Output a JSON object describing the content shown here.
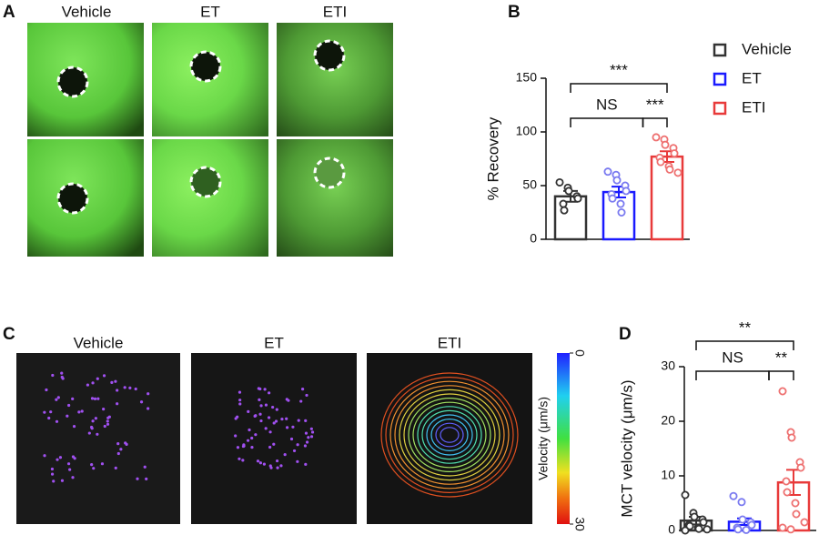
{
  "figure": {
    "panel_letters": [
      "A",
      "B",
      "C",
      "D"
    ],
    "panel_a_labels": [
      "Vehicle",
      "ET",
      "ETI"
    ],
    "panel_c_labels": [
      "Vehicle",
      "ET",
      "ETI"
    ],
    "colorbar": {
      "label": "Velocity (μm/s)",
      "ticks": [
        0,
        30
      ]
    }
  },
  "chart_data": [
    {
      "type": "bar",
      "ylabel": "% Recovery",
      "categories": [
        "Vehicle",
        "ET",
        "ETI"
      ],
      "colors": [
        "#333333",
        "#1a1aff",
        "#e83a3a"
      ],
      "point_colors": [
        "#333333",
        "#7a7af0",
        "#ee7070"
      ],
      "values": [
        40,
        44,
        77
      ],
      "errors": [
        5,
        5,
        5
      ],
      "points": [
        [
          53,
          48,
          45,
          40,
          38,
          33,
          27
        ],
        [
          63,
          60,
          55,
          50,
          45,
          42,
          38,
          33,
          25
        ],
        [
          95,
          93,
          88,
          85,
          80,
          76,
          72,
          68,
          65,
          62
        ]
      ],
      "annotations": [
        "***",
        "NS",
        "***"
      ],
      "ylim": [
        0,
        150
      ],
      "yticks": [
        0,
        50,
        100,
        150
      ],
      "legend": "right"
    },
    {
      "type": "bar",
      "ylabel": "MCT velocity (μm/s)",
      "categories": [
        "Vehicle",
        "ET",
        "ETI"
      ],
      "colors": [
        "#333333",
        "#1a1aff",
        "#e83a3a"
      ],
      "point_colors": [
        "#333333",
        "#7a7af0",
        "#ee7070"
      ],
      "values": [
        1.8,
        1.6,
        8.8
      ],
      "errors": [
        0.7,
        0.6,
        2.3
      ],
      "points": [
        [
          6.5,
          3.2,
          2.5,
          2,
          1.5,
          1,
          0.8,
          0.5,
          0.3,
          0.2,
          0
        ],
        [
          6.3,
          5.2,
          2,
          1.5,
          1,
          0.5,
          0.2,
          0.1
        ],
        [
          25.5,
          18,
          17,
          12.5,
          11.5,
          9,
          7,
          5,
          3,
          1.5,
          0.5,
          0.2
        ]
      ],
      "annotations": [
        "**",
        "NS",
        "**"
      ],
      "ylim": [
        0,
        30
      ],
      "yticks": [
        0,
        10,
        20,
        30
      ]
    }
  ]
}
